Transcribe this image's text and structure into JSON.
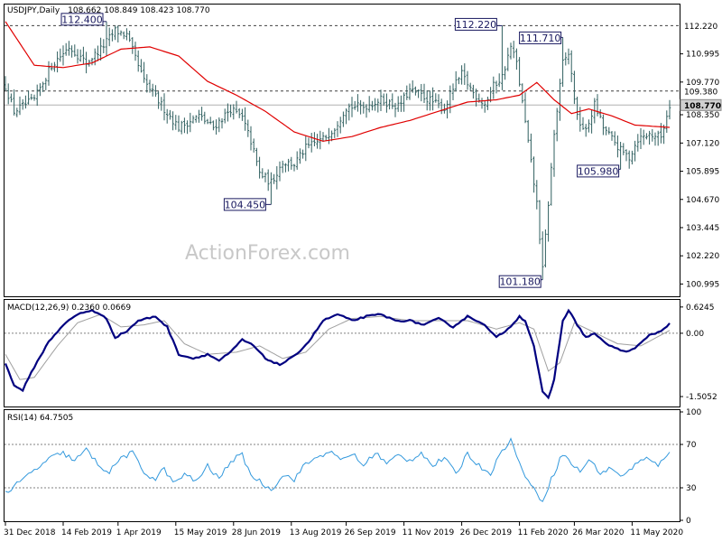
{
  "header": {
    "symbol": "USDJPY,Daily",
    "ohlc": "108.662 108.849 108.423 108.770"
  },
  "watermark": "ActionForex.com",
  "colors": {
    "bar": "#2f5f5f",
    "ma": "#e00000",
    "macd": "#000080",
    "signal": "#a0a0a0",
    "rsi": "#3399dd",
    "levels": "#404040",
    "annotation_box": "#1a1a60",
    "current_price_bg": "#d0d0d0"
  },
  "chart_data": [
    {
      "type": "line",
      "panel": "price",
      "title": "USDJPY,Daily 108.662 108.849 108.423 108.770",
      "ylim": [
        100.5,
        113.1
      ],
      "y_ticks": [
        "112.220",
        "110.995",
        "109.770",
        "108.350",
        "107.120",
        "105.895",
        "104.670",
        "103.445",
        "102.220",
        "100.995"
      ],
      "y_tick_values": [
        112.22,
        110.995,
        109.77,
        108.35,
        107.12,
        105.895,
        104.67,
        103.445,
        102.22,
        100.995
      ],
      "x_labels": [
        "31 Dec 2018",
        "14 Feb 2019",
        "1 Apr 2019",
        "15 May 2019",
        "28 Jun 2019",
        "13 Aug 2019",
        "26 Sep 2019",
        "11 Nov 2019",
        "26 Dec 2019",
        "11 Feb 2020",
        "26 Mar 2020",
        "11 May 2020"
      ],
      "price_keypoints": [
        {
          "i": 0,
          "v": 109.6
        },
        {
          "i": 3,
          "v": 108.5
        },
        {
          "i": 10,
          "v": 109.0
        },
        {
          "i": 16,
          "v": 110.5
        },
        {
          "i": 22,
          "v": 111.3
        },
        {
          "i": 28,
          "v": 110.6
        },
        {
          "i": 33,
          "v": 111.2
        },
        {
          "i": 38,
          "v": 112.0
        },
        {
          "i": 42,
          "v": 111.8
        },
        {
          "i": 48,
          "v": 109.8
        },
        {
          "i": 55,
          "v": 108.6
        },
        {
          "i": 60,
          "v": 107.8
        },
        {
          "i": 67,
          "v": 108.3
        },
        {
          "i": 72,
          "v": 107.8
        },
        {
          "i": 78,
          "v": 108.6
        },
        {
          "i": 82,
          "v": 108.2
        },
        {
          "i": 85,
          "v": 107.2
        },
        {
          "i": 88,
          "v": 105.8
        },
        {
          "i": 92,
          "v": 105.4
        },
        {
          "i": 96,
          "v": 106.3
        },
        {
          "i": 100,
          "v": 106.2
        },
        {
          "i": 104,
          "v": 106.9
        },
        {
          "i": 110,
          "v": 107.3
        },
        {
          "i": 114,
          "v": 107.8
        },
        {
          "i": 118,
          "v": 108.7
        },
        {
          "i": 124,
          "v": 108.7
        },
        {
          "i": 130,
          "v": 109.0
        },
        {
          "i": 136,
          "v": 108.7
        },
        {
          "i": 140,
          "v": 109.4
        },
        {
          "i": 144,
          "v": 109.2
        },
        {
          "i": 148,
          "v": 108.9
        },
        {
          "i": 152,
          "v": 108.6
        },
        {
          "i": 155,
          "v": 109.5
        },
        {
          "i": 158,
          "v": 110.1
        },
        {
          "i": 162,
          "v": 109.3
        },
        {
          "i": 166,
          "v": 108.8
        },
        {
          "i": 169,
          "v": 109.6
        },
        {
          "i": 172,
          "v": 110.0
        },
        {
          "i": 175,
          "v": 111.3
        },
        {
          "i": 177,
          "v": 110.6
        },
        {
          "i": 180,
          "v": 108.0
        },
        {
          "i": 184,
          "v": 104.5
        },
        {
          "i": 186,
          "v": 101.6
        },
        {
          "i": 188,
          "v": 104.5
        },
        {
          "i": 190,
          "v": 107.5
        },
        {
          "i": 193,
          "v": 110.6
        },
        {
          "i": 195,
          "v": 111.0
        },
        {
          "i": 198,
          "v": 108.2
        },
        {
          "i": 201,
          "v": 107.6
        },
        {
          "i": 204,
          "v": 108.8
        },
        {
          "i": 207,
          "v": 107.8
        },
        {
          "i": 210,
          "v": 107.3
        },
        {
          "i": 213,
          "v": 106.8
        },
        {
          "i": 216,
          "v": 106.5
        },
        {
          "i": 219,
          "v": 107.3
        },
        {
          "i": 223,
          "v": 107.5
        },
        {
          "i": 227,
          "v": 107.4
        },
        {
          "i": 230,
          "v": 108.77
        }
      ],
      "ma_keypoints": [
        {
          "i": 0,
          "v": 112.4
        },
        {
          "i": 10,
          "v": 110.5
        },
        {
          "i": 20,
          "v": 110.4
        },
        {
          "i": 30,
          "v": 110.6
        },
        {
          "i": 40,
          "v": 111.2
        },
        {
          "i": 50,
          "v": 111.3
        },
        {
          "i": 60,
          "v": 110.9
        },
        {
          "i": 70,
          "v": 109.8
        },
        {
          "i": 80,
          "v": 109.2
        },
        {
          "i": 90,
          "v": 108.5
        },
        {
          "i": 100,
          "v": 107.6
        },
        {
          "i": 110,
          "v": 107.2
        },
        {
          "i": 120,
          "v": 107.4
        },
        {
          "i": 130,
          "v": 107.8
        },
        {
          "i": 140,
          "v": 108.1
        },
        {
          "i": 150,
          "v": 108.5
        },
        {
          "i": 160,
          "v": 108.9
        },
        {
          "i": 170,
          "v": 109.0
        },
        {
          "i": 178,
          "v": 109.2
        },
        {
          "i": 184,
          "v": 109.75
        },
        {
          "i": 190,
          "v": 109.0
        },
        {
          "i": 196,
          "v": 108.4
        },
        {
          "i": 202,
          "v": 108.6
        },
        {
          "i": 210,
          "v": 108.3
        },
        {
          "i": 218,
          "v": 107.9
        },
        {
          "i": 230,
          "v": 107.8
        }
      ],
      "horizontal_levels": [
        {
          "value": 112.22,
          "label": "112.220",
          "style": "dotted"
        },
        {
          "value": 109.38,
          "label": "109.380",
          "style": "dotted"
        },
        {
          "value": 108.77,
          "label": "108.770",
          "style": "solid",
          "current": true
        }
      ],
      "annotations": [
        {
          "text": "112.400",
          "i": 35,
          "v": 112.4
        },
        {
          "text": "104.450",
          "i": 92,
          "v": 104.45
        },
        {
          "text": "112.220",
          "i": 172,
          "v": 112.22
        },
        {
          "text": "111.710",
          "i": 193,
          "v": 111.71
        },
        {
          "text": "101.180",
          "i": 186,
          "v": 101.18
        },
        {
          "text": "105.980",
          "i": 213,
          "v": 105.98
        }
      ],
      "n_bars": 231
    },
    {
      "type": "line",
      "panel": "macd",
      "title": "MACD(12,26,9) 0.2360 0.0669",
      "ylim": [
        -1.72,
        0.75
      ],
      "y_ticks": [
        "0.6245",
        "0.00",
        "-1.5052"
      ],
      "y_tick_values": [
        0.6245,
        0.0,
        -1.5052
      ],
      "macd_keypoints": [
        {
          "i": 0,
          "v": -0.7
        },
        {
          "i": 3,
          "v": -1.25
        },
        {
          "i": 6,
          "v": -1.35
        },
        {
          "i": 10,
          "v": -0.8
        },
        {
          "i": 15,
          "v": -0.2
        },
        {
          "i": 20,
          "v": 0.2
        },
        {
          "i": 25,
          "v": 0.45
        },
        {
          "i": 30,
          "v": 0.55
        },
        {
          "i": 35,
          "v": 0.35
        },
        {
          "i": 38,
          "v": -0.1
        },
        {
          "i": 42,
          "v": 0.05
        },
        {
          "i": 46,
          "v": 0.3
        },
        {
          "i": 52,
          "v": 0.4
        },
        {
          "i": 56,
          "v": 0.15
        },
        {
          "i": 60,
          "v": -0.5
        },
        {
          "i": 65,
          "v": -0.6
        },
        {
          "i": 70,
          "v": -0.5
        },
        {
          "i": 74,
          "v": -0.65
        },
        {
          "i": 78,
          "v": -0.45
        },
        {
          "i": 82,
          "v": -0.15
        },
        {
          "i": 86,
          "v": -0.3
        },
        {
          "i": 90,
          "v": -0.6
        },
        {
          "i": 95,
          "v": -0.75
        },
        {
          "i": 100,
          "v": -0.55
        },
        {
          "i": 105,
          "v": -0.2
        },
        {
          "i": 110,
          "v": 0.3
        },
        {
          "i": 115,
          "v": 0.45
        },
        {
          "i": 120,
          "v": 0.3
        },
        {
          "i": 125,
          "v": 0.4
        },
        {
          "i": 130,
          "v": 0.45
        },
        {
          "i": 135,
          "v": 0.3
        },
        {
          "i": 140,
          "v": 0.3
        },
        {
          "i": 145,
          "v": 0.2
        },
        {
          "i": 150,
          "v": 0.35
        },
        {
          "i": 155,
          "v": 0.15
        },
        {
          "i": 160,
          "v": 0.4
        },
        {
          "i": 165,
          "v": 0.25
        },
        {
          "i": 170,
          "v": -0.1
        },
        {
          "i": 174,
          "v": 0.1
        },
        {
          "i": 178,
          "v": 0.4
        },
        {
          "i": 180,
          "v": 0.3
        },
        {
          "i": 183,
          "v": -0.3
        },
        {
          "i": 186,
          "v": -1.4
        },
        {
          "i": 188,
          "v": -1.55
        },
        {
          "i": 190,
          "v": -1.1
        },
        {
          "i": 193,
          "v": 0.3
        },
        {
          "i": 195,
          "v": 0.55
        },
        {
          "i": 198,
          "v": 0.2
        },
        {
          "i": 201,
          "v": -0.1
        },
        {
          "i": 204,
          "v": 0.0
        },
        {
          "i": 207,
          "v": -0.2
        },
        {
          "i": 211,
          "v": -0.35
        },
        {
          "i": 215,
          "v": -0.45
        },
        {
          "i": 219,
          "v": -0.3
        },
        {
          "i": 223,
          "v": -0.05
        },
        {
          "i": 227,
          "v": 0.05
        },
        {
          "i": 230,
          "v": 0.236
        }
      ],
      "signal_keypoints": [
        {
          "i": 0,
          "v": -0.5
        },
        {
          "i": 5,
          "v": -1.1
        },
        {
          "i": 10,
          "v": -1.05
        },
        {
          "i": 18,
          "v": -0.3
        },
        {
          "i": 25,
          "v": 0.25
        },
        {
          "i": 33,
          "v": 0.45
        },
        {
          "i": 40,
          "v": 0.15
        },
        {
          "i": 48,
          "v": 0.2
        },
        {
          "i": 55,
          "v": 0.3
        },
        {
          "i": 62,
          "v": -0.25
        },
        {
          "i": 70,
          "v": -0.5
        },
        {
          "i": 80,
          "v": -0.45
        },
        {
          "i": 88,
          "v": -0.3
        },
        {
          "i": 96,
          "v": -0.6
        },
        {
          "i": 104,
          "v": -0.45
        },
        {
          "i": 112,
          "v": 0.1
        },
        {
          "i": 120,
          "v": 0.35
        },
        {
          "i": 130,
          "v": 0.4
        },
        {
          "i": 140,
          "v": 0.3
        },
        {
          "i": 150,
          "v": 0.3
        },
        {
          "i": 160,
          "v": 0.3
        },
        {
          "i": 170,
          "v": 0.1
        },
        {
          "i": 178,
          "v": 0.25
        },
        {
          "i": 183,
          "v": 0.1
        },
        {
          "i": 188,
          "v": -0.9
        },
        {
          "i": 192,
          "v": -0.7
        },
        {
          "i": 197,
          "v": 0.25
        },
        {
          "i": 203,
          "v": 0.05
        },
        {
          "i": 212,
          "v": -0.25
        },
        {
          "i": 220,
          "v": -0.3
        },
        {
          "i": 230,
          "v": 0.067
        }
      ]
    },
    {
      "type": "line",
      "panel": "rsi",
      "title": "RSI(14) 64.7505",
      "ylim": [
        0,
        100
      ],
      "y_ticks": [
        "100",
        "70",
        "30",
        "0"
      ],
      "y_tick_values": [
        100,
        70,
        30,
        0
      ],
      "levels": [
        70,
        30
      ],
      "rsi_keypoints": [
        {
          "i": 0,
          "v": 25
        },
        {
          "i": 4,
          "v": 33
        },
        {
          "i": 8,
          "v": 42
        },
        {
          "i": 12,
          "v": 50
        },
        {
          "i": 16,
          "v": 58
        },
        {
          "i": 20,
          "v": 62
        },
        {
          "i": 24,
          "v": 55
        },
        {
          "i": 28,
          "v": 65
        },
        {
          "i": 32,
          "v": 52
        },
        {
          "i": 36,
          "v": 44
        },
        {
          "i": 40,
          "v": 58
        },
        {
          "i": 44,
          "v": 62
        },
        {
          "i": 48,
          "v": 44
        },
        {
          "i": 52,
          "v": 38
        },
        {
          "i": 55,
          "v": 48
        },
        {
          "i": 58,
          "v": 34
        },
        {
          "i": 62,
          "v": 42
        },
        {
          "i": 66,
          "v": 36
        },
        {
          "i": 70,
          "v": 50
        },
        {
          "i": 74,
          "v": 38
        },
        {
          "i": 78,
          "v": 55
        },
        {
          "i": 82,
          "v": 60
        },
        {
          "i": 85,
          "v": 42
        },
        {
          "i": 88,
          "v": 36
        },
        {
          "i": 92,
          "v": 28
        },
        {
          "i": 96,
          "v": 42
        },
        {
          "i": 100,
          "v": 38
        },
        {
          "i": 104,
          "v": 52
        },
        {
          "i": 108,
          "v": 58
        },
        {
          "i": 112,
          "v": 64
        },
        {
          "i": 116,
          "v": 55
        },
        {
          "i": 120,
          "v": 62
        },
        {
          "i": 124,
          "v": 50
        },
        {
          "i": 128,
          "v": 63
        },
        {
          "i": 132,
          "v": 52
        },
        {
          "i": 136,
          "v": 60
        },
        {
          "i": 140,
          "v": 55
        },
        {
          "i": 144,
          "v": 63
        },
        {
          "i": 148,
          "v": 50
        },
        {
          "i": 152,
          "v": 58
        },
        {
          "i": 156,
          "v": 42
        },
        {
          "i": 160,
          "v": 62
        },
        {
          "i": 164,
          "v": 50
        },
        {
          "i": 168,
          "v": 44
        },
        {
          "i": 172,
          "v": 64
        },
        {
          "i": 175,
          "v": 75
        },
        {
          "i": 177,
          "v": 58
        },
        {
          "i": 180,
          "v": 42
        },
        {
          "i": 183,
          "v": 28
        },
        {
          "i": 186,
          "v": 18
        },
        {
          "i": 189,
          "v": 38
        },
        {
          "i": 193,
          "v": 62
        },
        {
          "i": 196,
          "v": 52
        },
        {
          "i": 199,
          "v": 45
        },
        {
          "i": 202,
          "v": 56
        },
        {
          "i": 206,
          "v": 44
        },
        {
          "i": 210,
          "v": 48
        },
        {
          "i": 214,
          "v": 40
        },
        {
          "i": 218,
          "v": 52
        },
        {
          "i": 222,
          "v": 57
        },
        {
          "i": 226,
          "v": 50
        },
        {
          "i": 230,
          "v": 64.75
        }
      ]
    }
  ]
}
